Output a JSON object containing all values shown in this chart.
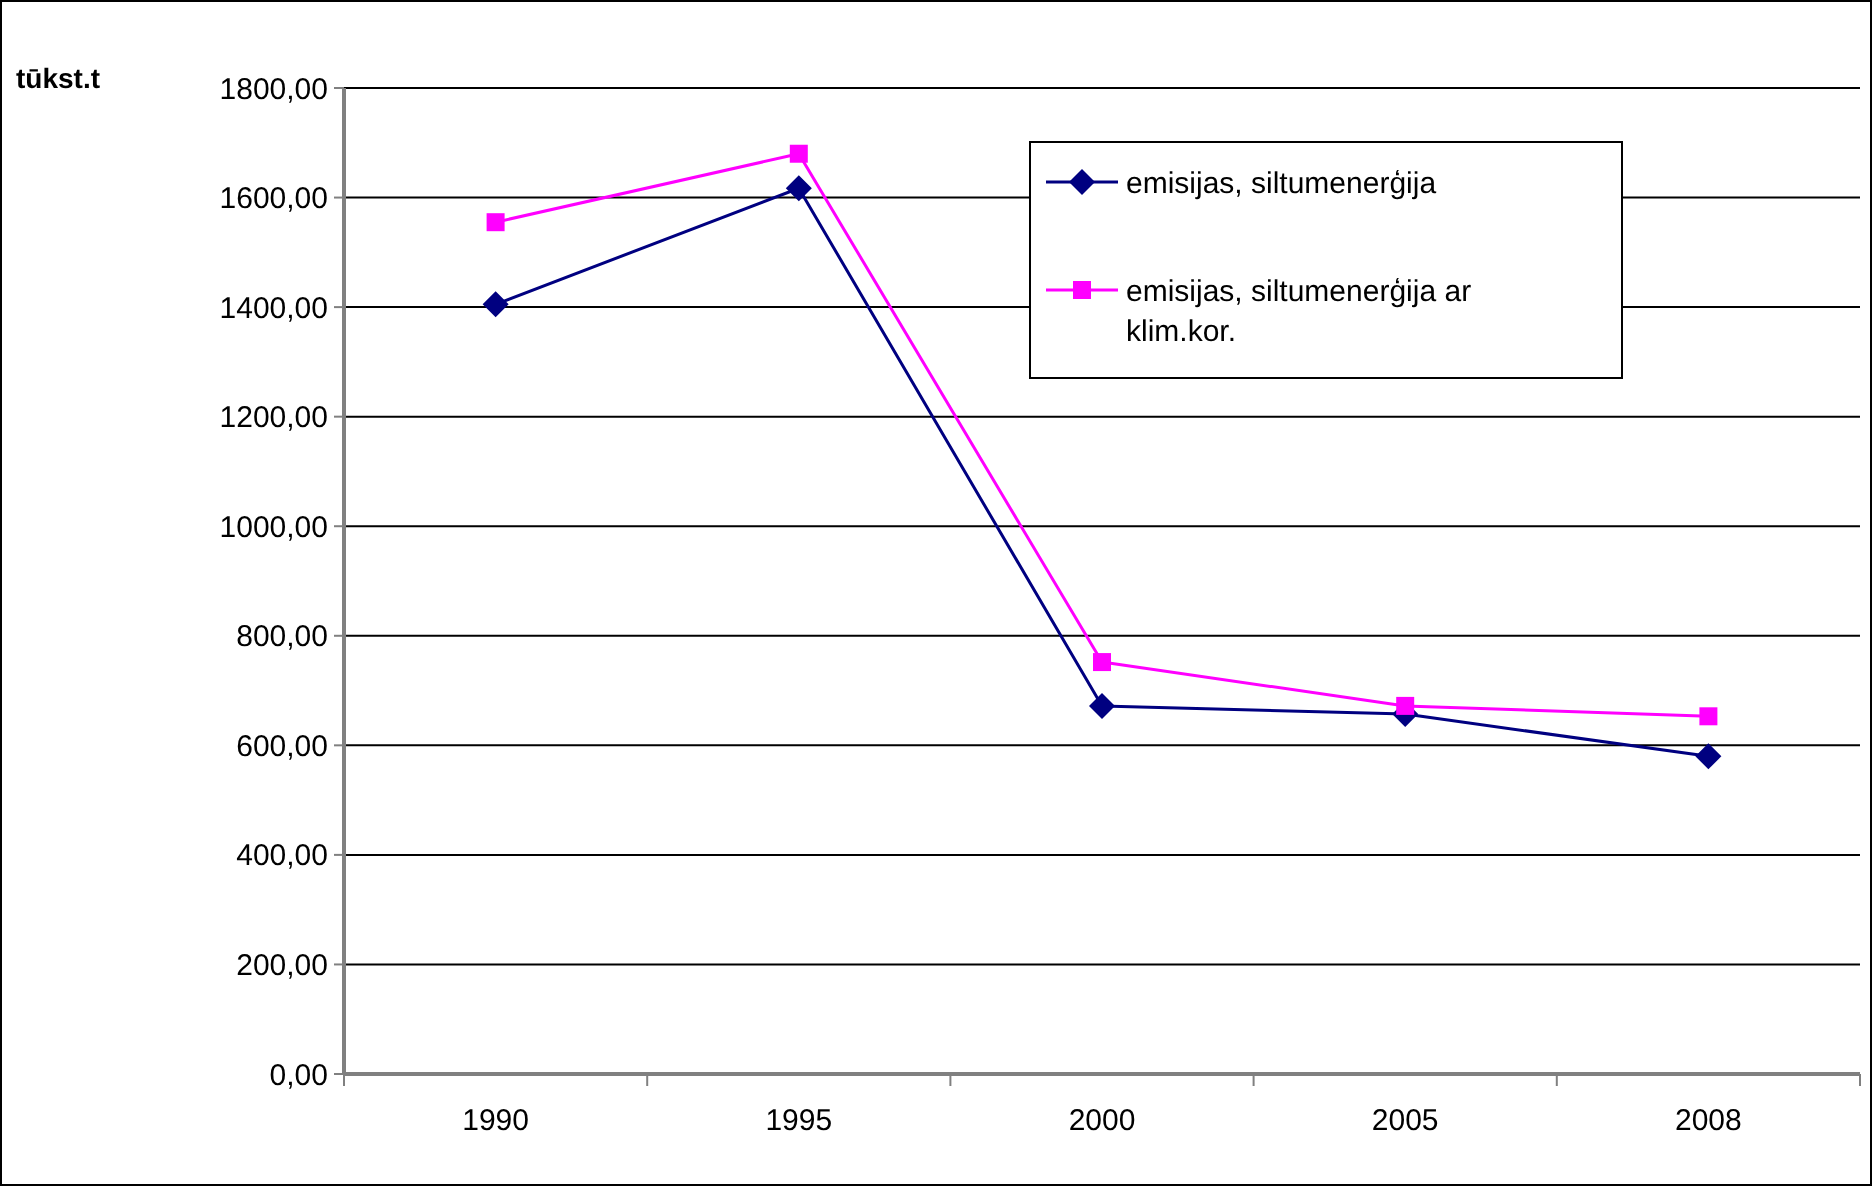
{
  "chart_data": {
    "type": "line",
    "ylabel": "tūkst.t",
    "categories": [
      "1990",
      "1995",
      "2000",
      "2005",
      "2008"
    ],
    "series": [
      {
        "name": "emisijas, siltumenerģija",
        "color": "#000080",
        "marker": "diamond",
        "values": [
          1405,
          1617,
          672,
          657,
          580
        ]
      },
      {
        "name": "emisijas, siltumenerģija ar klim.kor.",
        "color": "#ff00ff",
        "marker": "square",
        "values": [
          1555,
          1680,
          752,
          672,
          653
        ]
      }
    ],
    "ylim": [
      0,
      1800
    ],
    "yticks": [
      {
        "value": 0,
        "label": "0,00"
      },
      {
        "value": 200,
        "label": "200,00"
      },
      {
        "value": 400,
        "label": "400,00"
      },
      {
        "value": 600,
        "label": "600,00"
      },
      {
        "value": 800,
        "label": "800,00"
      },
      {
        "value": 1000,
        "label": "1000,00"
      },
      {
        "value": 1200,
        "label": "1200,00"
      },
      {
        "value": 1400,
        "label": "1400,00"
      },
      {
        "value": 1600,
        "label": "1600,00"
      },
      {
        "value": 1800,
        "label": "1800,00"
      }
    ],
    "grid": "y",
    "legend": "top right",
    "line_style": "solid"
  }
}
